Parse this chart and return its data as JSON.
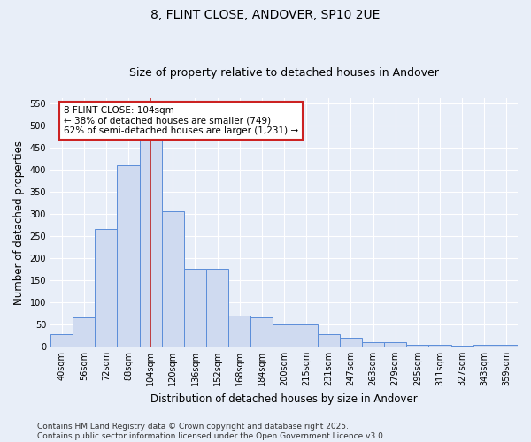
{
  "title": "8, FLINT CLOSE, ANDOVER, SP10 2UE",
  "subtitle": "Size of property relative to detached houses in Andover",
  "xlabel": "Distribution of detached houses by size in Andover",
  "ylabel": "Number of detached properties",
  "categories": [
    "40sqm",
    "56sqm",
    "72sqm",
    "88sqm",
    "104sqm",
    "120sqm",
    "136sqm",
    "152sqm",
    "168sqm",
    "184sqm",
    "200sqm",
    "215sqm",
    "231sqm",
    "247sqm",
    "263sqm",
    "279sqm",
    "295sqm",
    "311sqm",
    "327sqm",
    "343sqm",
    "359sqm"
  ],
  "values": [
    28,
    65,
    265,
    410,
    465,
    305,
    175,
    175,
    70,
    65,
    50,
    50,
    28,
    20,
    10,
    10,
    4,
    4,
    1,
    4,
    4
  ],
  "bar_color": "#cfdaf0",
  "bar_edge_color": "#5b8dd9",
  "ref_line_color": "#bb2222",
  "annotation_text": "8 FLINT CLOSE: 104sqm\n← 38% of detached houses are smaller (749)\n62% of semi-detached houses are larger (1,231) →",
  "annotation_box_color": "#ffffff",
  "annotation_box_edge": "#cc2222",
  "ylim_max": 560,
  "ytick_step": 50,
  "footer": "Contains HM Land Registry data © Crown copyright and database right 2025.\nContains public sector information licensed under the Open Government Licence v3.0.",
  "bg_color": "#e8eef8",
  "grid_color": "#ffffff",
  "title_fontsize": 10,
  "subtitle_fontsize": 9,
  "axis_label_fontsize": 8.5,
  "tick_fontsize": 7,
  "annot_fontsize": 7.5,
  "footer_fontsize": 6.5
}
